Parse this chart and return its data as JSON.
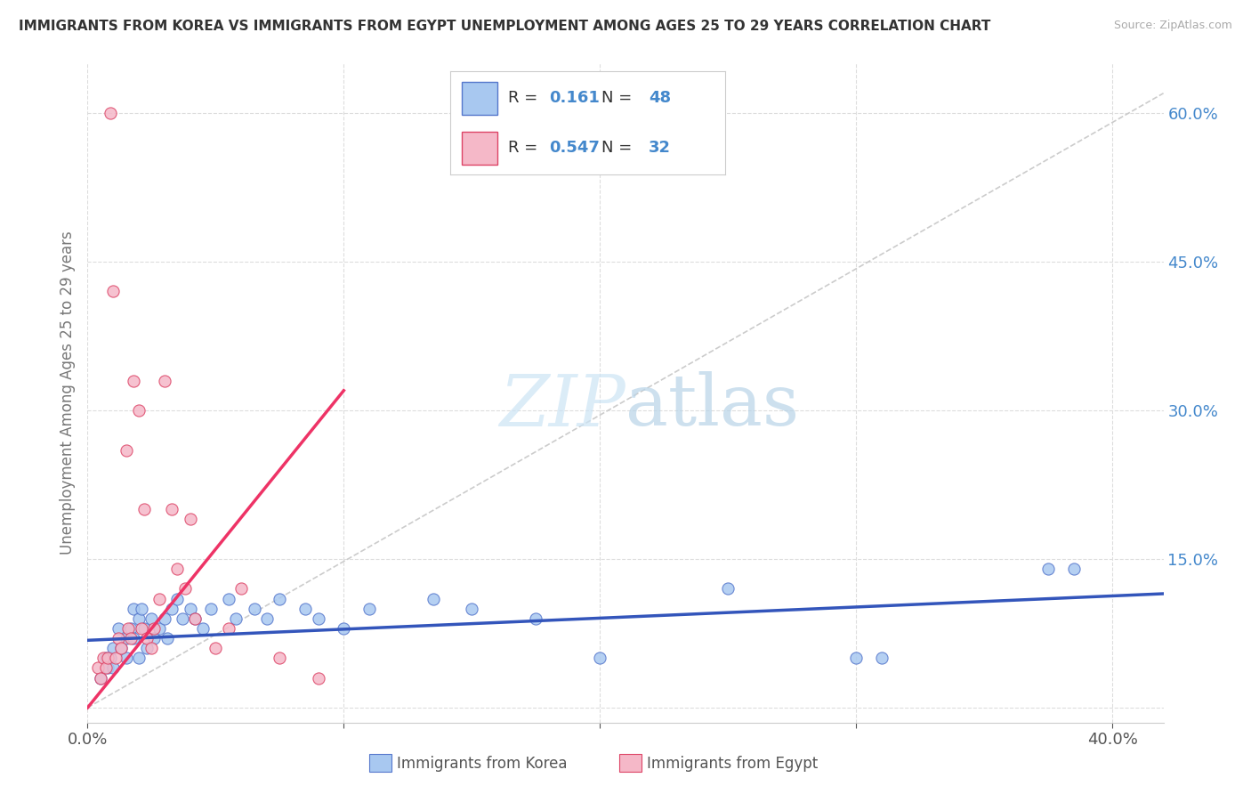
{
  "title": "IMMIGRANTS FROM KOREA VS IMMIGRANTS FROM EGYPT UNEMPLOYMENT AMONG AGES 25 TO 29 YEARS CORRELATION CHART",
  "source": "Source: ZipAtlas.com",
  "ylabel": "Unemployment Among Ages 25 to 29 years",
  "xlim": [
    0.0,
    0.42
  ],
  "ylim": [
    -0.015,
    0.65
  ],
  "ytick_vals": [
    0.0,
    0.15,
    0.3,
    0.45,
    0.6
  ],
  "ytick_labels": [
    "",
    "15.0%",
    "30.0%",
    "45.0%",
    "60.0%"
  ],
  "xtick_vals": [
    0.0,
    0.1,
    0.2,
    0.3,
    0.4
  ],
  "xtick_labels": [
    "0.0%",
    "",
    "",
    "",
    "40.0%"
  ],
  "korea_R": 0.161,
  "korea_N": 48,
  "egypt_R": 0.547,
  "egypt_N": 32,
  "korea_color": "#a8c8f0",
  "egypt_color": "#f5b8c8",
  "korea_edge_color": "#5577cc",
  "egypt_edge_color": "#dd4466",
  "korea_line_color": "#3355bb",
  "egypt_line_color": "#ee3366",
  "watermark_color": "#ddeeff",
  "background_color": "#ffffff",
  "grid_color": "#dddddd",
  "korea_scatter_x": [
    0.005,
    0.007,
    0.008,
    0.009,
    0.01,
    0.01,
    0.012,
    0.013,
    0.015,
    0.015,
    0.017,
    0.018,
    0.018,
    0.02,
    0.02,
    0.021,
    0.022,
    0.023,
    0.025,
    0.026,
    0.028,
    0.03,
    0.031,
    0.033,
    0.035,
    0.037,
    0.04,
    0.042,
    0.045,
    0.048,
    0.055,
    0.058,
    0.065,
    0.07,
    0.075,
    0.085,
    0.09,
    0.1,
    0.11,
    0.135,
    0.15,
    0.175,
    0.2,
    0.25,
    0.3,
    0.31,
    0.375,
    0.385
  ],
  "korea_scatter_y": [
    0.03,
    0.05,
    0.04,
    0.05,
    0.06,
    0.04,
    0.08,
    0.06,
    0.07,
    0.05,
    0.08,
    0.1,
    0.07,
    0.09,
    0.05,
    0.1,
    0.08,
    0.06,
    0.09,
    0.07,
    0.08,
    0.09,
    0.07,
    0.1,
    0.11,
    0.09,
    0.1,
    0.09,
    0.08,
    0.1,
    0.11,
    0.09,
    0.1,
    0.09,
    0.11,
    0.1,
    0.09,
    0.08,
    0.1,
    0.11,
    0.1,
    0.09,
    0.05,
    0.12,
    0.05,
    0.05,
    0.14,
    0.14
  ],
  "egypt_scatter_x": [
    0.004,
    0.005,
    0.006,
    0.007,
    0.008,
    0.009,
    0.01,
    0.011,
    0.012,
    0.013,
    0.015,
    0.016,
    0.017,
    0.018,
    0.02,
    0.021,
    0.022,
    0.023,
    0.025,
    0.026,
    0.028,
    0.03,
    0.033,
    0.035,
    0.038,
    0.04,
    0.042,
    0.05,
    0.055,
    0.06,
    0.075,
    0.09
  ],
  "egypt_scatter_y": [
    0.04,
    0.03,
    0.05,
    0.04,
    0.05,
    0.6,
    0.42,
    0.05,
    0.07,
    0.06,
    0.26,
    0.08,
    0.07,
    0.33,
    0.3,
    0.08,
    0.2,
    0.07,
    0.06,
    0.08,
    0.11,
    0.33,
    0.2,
    0.14,
    0.12,
    0.19,
    0.09,
    0.06,
    0.08,
    0.12,
    0.05,
    0.03
  ],
  "korea_trend_x": [
    0.0,
    0.42
  ],
  "korea_trend_y": [
    0.068,
    0.115
  ],
  "egypt_trend_x": [
    0.0,
    0.1
  ],
  "egypt_trend_y": [
    0.0,
    0.32
  ],
  "dash_line_x": [
    0.0,
    0.42
  ],
  "dash_line_y": [
    0.0,
    0.62
  ]
}
